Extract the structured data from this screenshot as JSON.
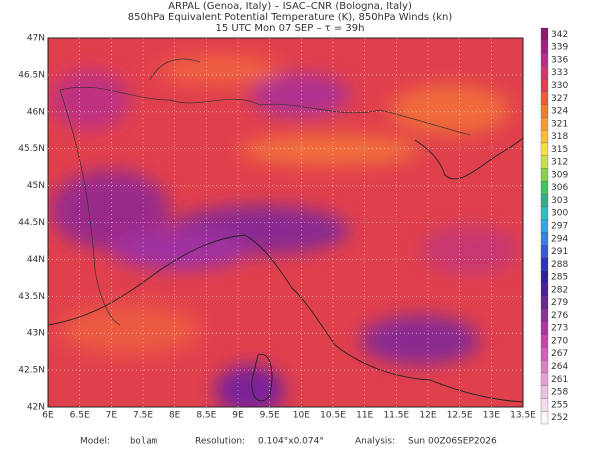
{
  "header": {
    "lines": [
      "ARPAL (Genoa, Italy)  –  ISAC–CNR (Bologna, Italy)",
      "850hPa Equivalent Potential Temperature (K), 850hPa Winds (kn)",
      "15 UTC Mon 07 SEP  –  τ = 39h"
    ]
  },
  "map": {
    "lat_labels": [
      "47N",
      "46.5N",
      "46N",
      "45.5N",
      "45N",
      "44.5N",
      "44N",
      "43.5N",
      "43N",
      "42.5N",
      "42N"
    ],
    "lon_labels": [
      "6E",
      "6.5E",
      "7E",
      "7.5E",
      "8E",
      "8.5E",
      "9E",
      "9.5E",
      "10E",
      "10.5E",
      "11E",
      "11.5E",
      "12E",
      "12.5E",
      "13E",
      "13.5E"
    ]
  },
  "colorbar": {
    "levels": [
      342,
      339,
      336,
      333,
      330,
      327,
      324,
      321,
      318,
      315,
      312,
      309,
      306,
      303,
      300,
      297,
      294,
      291,
      288,
      285,
      282,
      279,
      276,
      273,
      270,
      267,
      264,
      261,
      258,
      255,
      252
    ],
    "colors": [
      "#8a1a6e",
      "#a0208a",
      "#c02a8c",
      "#d83272",
      "#e83c50",
      "#f05a3a",
      "#f47a30",
      "#f89a2a",
      "#f8c030",
      "#f4e040",
      "#c8e048",
      "#88d050",
      "#48c060",
      "#30b088",
      "#28c0c0",
      "#30a8e0",
      "#3880e8",
      "#3858e0",
      "#3030c8",
      "#3020a0",
      "#4a2090",
      "#6a2890",
      "#8a3098",
      "#a838a0",
      "#c048a8",
      "#d060b8",
      "#dc80c8",
      "#e4a0d4",
      "#ecc0e0",
      "#f4dcec",
      "#fcf4f8"
    ]
  },
  "footer": {
    "model_label": "Model:",
    "model": "bolam",
    "resolution_label": "Resolution:",
    "resolution": "0.104°x0.074°",
    "analysis_label": "Analysis:",
    "analysis": "Sun 00Z06SEP2026"
  }
}
